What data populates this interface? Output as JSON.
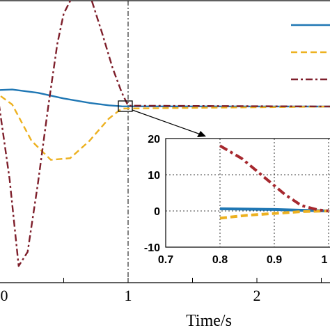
{
  "chart_data": [
    {
      "type": "line",
      "role": "main",
      "xlabel": "Time/s",
      "ylabel": "",
      "x_tick_labels": [
        "0",
        "1",
        "2"
      ],
      "xlim": [
        0,
        2.6
      ],
      "ylim": [
        -42,
        30
      ],
      "grid": false,
      "legend": "top-right",
      "annotations": [
        "vertical dash-dot line at t = 1",
        "zoom box around t ≈ 0.97, y ≈ 0 with arrow to inset"
      ],
      "series": [
        {
          "style": "solid",
          "color": "#1f77b4",
          "x": [
            -0.05,
            0.1,
            0.3,
            0.5,
            0.7,
            0.85,
            0.95,
            2.6
          ],
          "y": [
            4.0,
            4.2,
            3.4,
            2.0,
            0.9,
            0.3,
            0.05,
            0
          ]
        },
        {
          "style": "dashed",
          "color": "#edb120",
          "x": [
            -0.05,
            0.1,
            0.25,
            0.4,
            0.55,
            0.7,
            0.85,
            0.95,
            2.6
          ],
          "y": [
            4.0,
            0.5,
            -8.5,
            -13.2,
            -12.8,
            -8.5,
            -3.0,
            -0.5,
            0
          ]
        },
        {
          "style": "dash-dot",
          "color": "#7e1f2b",
          "x": [
            -0.05,
            0.0,
            0.08,
            0.15,
            0.22,
            0.3,
            0.38,
            0.45,
            0.5,
            0.58,
            0.66,
            0.72,
            0.8,
            0.88,
            0.95,
            1.0,
            2.6
          ],
          "y": [
            4.0,
            0.0,
            -18,
            -39.5,
            -36,
            -19,
            0,
            15.5,
            23,
            28,
            28.8,
            26,
            18,
            9.5,
            3.5,
            0.2,
            0
          ]
        }
      ]
    },
    {
      "type": "line",
      "role": "inset",
      "xlim": [
        0.7,
        1.0
      ],
      "ylim": [
        -10,
        20
      ],
      "x_ticks": [
        "0.7",
        "0.8",
        "0.9",
        "1"
      ],
      "y_ticks": [
        "20",
        "10",
        "0",
        "-10"
      ],
      "grid": true,
      "series": [
        {
          "style": "solid",
          "color": "#1f77b4",
          "x": [
            0.8,
            0.85,
            0.9,
            0.95,
            1.0
          ],
          "y": [
            0.6,
            0.5,
            0.4,
            0.2,
            0.0
          ]
        },
        {
          "style": "dashed",
          "color": "#edb120",
          "x": [
            0.8,
            0.85,
            0.9,
            0.95,
            1.0
          ],
          "y": [
            -2.0,
            -1.2,
            -0.7,
            -0.2,
            0.0
          ]
        },
        {
          "style": "dash-dot",
          "color": "#a6282e",
          "x": [
            0.8,
            0.84,
            0.88,
            0.92,
            0.95,
            0.98,
            1.0
          ],
          "y": [
            18.0,
            14.5,
            9.5,
            4.5,
            1.5,
            0.3,
            0.0
          ]
        }
      ]
    }
  ]
}
